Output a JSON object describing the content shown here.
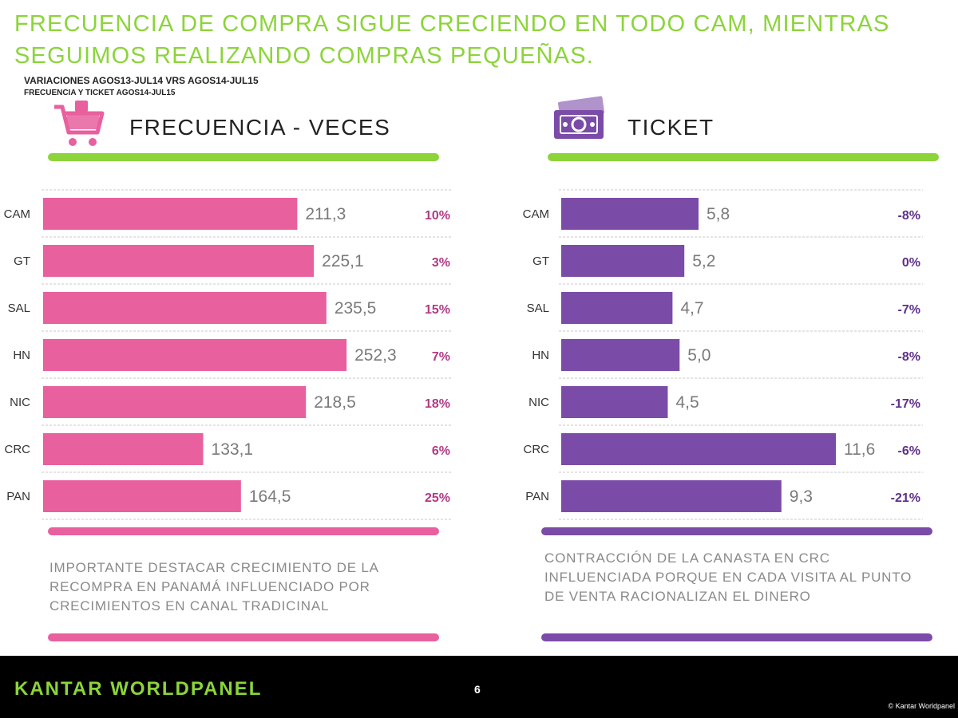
{
  "title": "FRECUENCIA DE COMPRA SIGUE CRECIENDO EN TODO CAM, MIENTRAS SEGUIMOS REALIZANDO COMPRAS PEQUEÑAS.",
  "subtitle_line1": "VARIACIONES AGOS13-JUL14 VRS AGOS14-JUL15",
  "subtitle_line2": "FRECUENCIA Y TICKET AGOS14-JUL15",
  "colors": {
    "accent_green": "#8cd43a",
    "pink": "#e8609e",
    "pink_text": "#b03a86",
    "purple": "#7b4ba8",
    "purple_text": "#5e2f8a",
    "value_grey": "#7a7a7a"
  },
  "icons": {
    "left": "shopping-cart-icon",
    "right": "money-bill-icon"
  },
  "chart_data": [
    {
      "type": "bar",
      "orientation": "horizontal",
      "title": "FRECUENCIA - VECES",
      "categories": [
        "CAM",
        "GT",
        "SAL",
        "HN",
        "NIC",
        "CRC",
        "PAN"
      ],
      "values": [
        211.3,
        225.1,
        235.5,
        252.3,
        218.5,
        133.1,
        164.5
      ],
      "value_labels": [
        "211,3",
        "225,1",
        "235,5",
        "252,3",
        "218,5",
        "133,1",
        "164,5"
      ],
      "variation_labels": [
        "10%",
        "3%",
        "15%",
        "7%",
        "18%",
        "6%",
        "25%"
      ],
      "xlim": [
        0,
        300
      ],
      "grid": true
    },
    {
      "type": "bar",
      "orientation": "horizontal",
      "title": "TICKET",
      "categories": [
        "CAM",
        "GT",
        "SAL",
        "HN",
        "NIC",
        "CRC",
        "PAN"
      ],
      "values": [
        5.8,
        5.2,
        4.7,
        5.0,
        4.5,
        11.6,
        9.3
      ],
      "value_labels": [
        "5,8",
        "5,2",
        "4,7",
        "5,0",
        "4,5",
        "11,6",
        "9,3"
      ],
      "variation_labels": [
        "-8%",
        "0%",
        "-7%",
        "-8%",
        "-17%",
        "-6%",
        "-21%"
      ],
      "xlim": [
        0,
        14.5
      ],
      "grid": true
    }
  ],
  "notes": {
    "left": "IMPORTANTE DESTACAR CRECIMIENTO DE LA RECOMPRA EN PANAMÁ INFLUENCIADO POR CRECIMIENTOS EN CANAL TRADICINAL",
    "right": "CONTRACCIÓN DE LA CANASTA EN CRC INFLUENCIADA PORQUE EN CADA VISITA AL PUNTO DE VENTA RACIONALIZAN EL DINERO"
  },
  "footer": {
    "logo": "KANTAR WORLDPANEL",
    "page": "6",
    "copyright": "© Kantar Worldpanel"
  }
}
